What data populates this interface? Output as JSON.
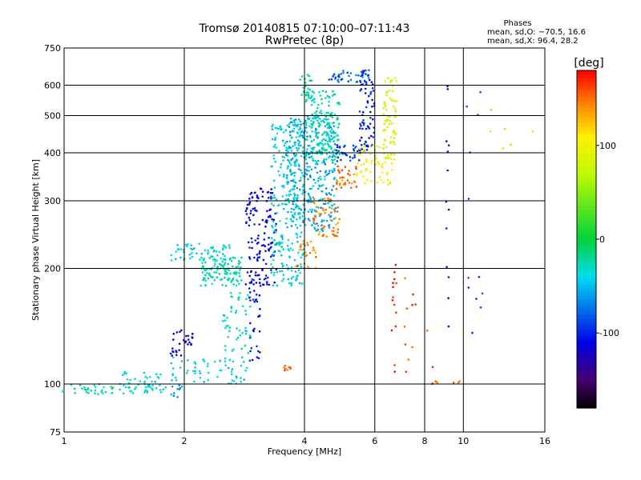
{
  "chart_data": {
    "type": "scatter",
    "title": "Tromsø 20140815 07:10:00–07:11:43",
    "subtitle": "RwPretec (8p)",
    "xlabel": "Frequency [MHz]",
    "ylabel": "Stationary phase Virtual Height [km]",
    "x_scale": "log",
    "y_scale": "log",
    "xlim": [
      1,
      16
    ],
    "ylim": [
      75,
      750
    ],
    "x_ticks": [
      1,
      2,
      4,
      6,
      8,
      10,
      16
    ],
    "x_tick_labels": [
      "1",
      "2",
      "4",
      "6",
      "8",
      "10",
      "16"
    ],
    "y_ticks": [
      75,
      100,
      200,
      300,
      400,
      500,
      600,
      750
    ],
    "y_tick_labels": [
      "75",
      "100",
      "200",
      "300",
      "400",
      "500",
      "600",
      "750"
    ],
    "grid": true,
    "phase_stats": {
      "heading": "Phases",
      "line_o": "mean, sd,O: −70.5, 16.6",
      "line_x": "mean, sd,X:  96.4, 28.2"
    },
    "colorbar": {
      "label": "[deg]",
      "range": [
        -180,
        180
      ],
      "ticks": [
        100,
        0,
        -100
      ],
      "tick_labels": [
        "100",
        "0",
        "-100"
      ],
      "colormap": "rainbow"
    },
    "clusters": [
      {
        "x": [
          0.99,
          1.8
        ],
        "y": [
          94,
          100
        ],
        "phase": -30,
        "n": 60
      },
      {
        "x": [
          1.3,
          1.75
        ],
        "y": [
          99,
          108
        ],
        "phase": -40,
        "n": 25
      },
      {
        "x": [
          1.85,
          2.0
        ],
        "y": [
          92,
          100
        ],
        "phase": -60,
        "n": 10
      },
      {
        "x": [
          1.85,
          2.1
        ],
        "y": [
          118,
          140
        ],
        "phase": -115,
        "n": 30
      },
      {
        "x": [
          1.85,
          2.9
        ],
        "y": [
          100,
          118
        ],
        "phase": -40,
        "n": 60
      },
      {
        "x": [
          1.85,
          2.6
        ],
        "y": [
          210,
          232
        ],
        "phase": -40,
        "n": 55
      },
      {
        "x": [
          2.2,
          2.8
        ],
        "y": [
          180,
          215
        ],
        "phase": -25,
        "n": 110
      },
      {
        "x": [
          2.5,
          2.95
        ],
        "y": [
          120,
          175
        ],
        "phase": -30,
        "n": 50
      },
      {
        "x": [
          2.85,
          3.4
        ],
        "y": [
          180,
          325
        ],
        "phase": -110,
        "n": 140
      },
      {
        "x": [
          2.9,
          3.1
        ],
        "y": [
          115,
          190
        ],
        "phase": -100,
        "n": 35
      },
      {
        "x": [
          3.3,
          4.0
        ],
        "y": [
          180,
          480
        ],
        "phase": -40,
        "n": 260
      },
      {
        "x": [
          3.6,
          4.8
        ],
        "y": [
          250,
          500
        ],
        "phase": -55,
        "n": 320
      },
      {
        "x": [
          4.0,
          4.9
        ],
        "y": [
          380,
          580
        ],
        "phase": -25,
        "n": 180
      },
      {
        "x": [
          3.9,
          4.2
        ],
        "y": [
          560,
          650
        ],
        "phase": -20,
        "n": 20
      },
      {
        "x": [
          4.6,
          5.8
        ],
        "y": [
          610,
          660
        ],
        "phase": -80,
        "n": 40
      },
      {
        "x": [
          4.8,
          5.6
        ],
        "y": [
          380,
          420
        ],
        "phase": -90,
        "n": 35
      },
      {
        "x": [
          5.5,
          6.0
        ],
        "y": [
          400,
          660
        ],
        "phase": -100,
        "n": 70
      },
      {
        "x": [
          3.8,
          4.3
        ],
        "y": [
          200,
          240
        ],
        "phase": 140,
        "n": 25
      },
      {
        "x": [
          4.2,
          4.9
        ],
        "y": [
          240,
          310
        ],
        "phase": 145,
        "n": 50
      },
      {
        "x": [
          4.8,
          5.4
        ],
        "y": [
          320,
          370
        ],
        "phase": 150,
        "n": 35
      },
      {
        "x": [
          5.4,
          6.7
        ],
        "y": [
          330,
          420
        ],
        "phase": 100,
        "n": 60
      },
      {
        "x": [
          6.3,
          6.8
        ],
        "y": [
          380,
          650
        ],
        "phase": 80,
        "n": 70
      },
      {
        "x": [
          3.55,
          3.7
        ],
        "y": [
          108,
          112
        ],
        "phase": 150,
        "n": 8
      },
      {
        "x": [
          6.6,
          6.8
        ],
        "y": [
          92,
          215
        ],
        "phase": 175,
        "n": 14
      },
      {
        "x": [
          7.1,
          8.4
        ],
        "y": [
          100,
          240
        ],
        "phase": 160,
        "n": 12
      },
      {
        "x": [
          8.3,
          10.0
        ],
        "y": [
          100,
          102
        ],
        "phase": 155,
        "n": 8
      },
      {
        "x": [
          9.0,
          9.2
        ],
        "y": [
          130,
          600
        ],
        "phase": -110,
        "n": 14
      },
      {
        "x": [
          10.2,
          11.2
        ],
        "y": [
          100,
          600
        ],
        "phase": -90,
        "n": 12
      },
      {
        "x": [
          11.5,
          15.0
        ],
        "y": [
          350,
          620
        ],
        "phase": 60,
        "n": 6
      }
    ]
  }
}
